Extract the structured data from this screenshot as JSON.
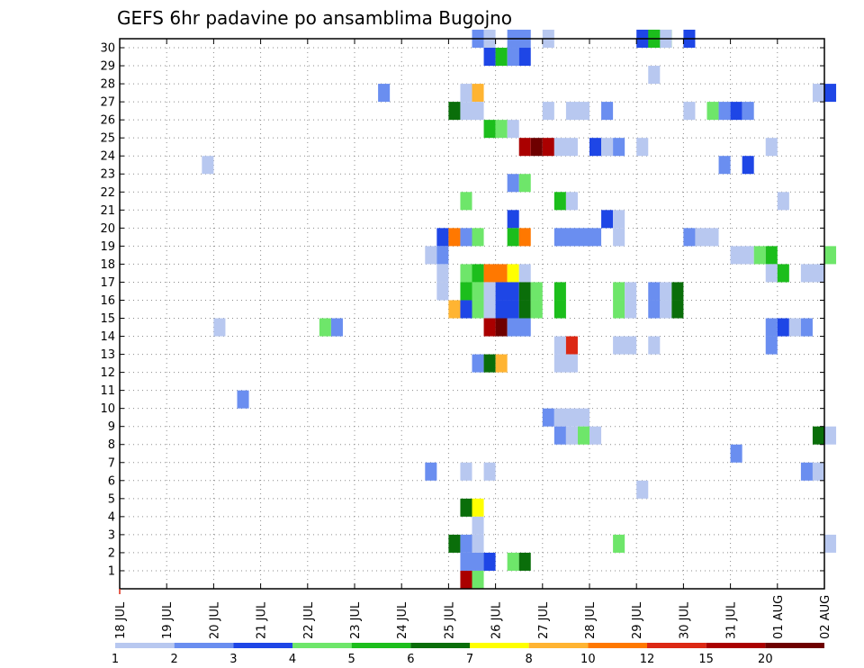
{
  "chart_data": {
    "type": "heatmap",
    "title": "GEFS 6hr padavine po ansamblima Bugojno",
    "y_ticks": [
      "1",
      "2",
      "3",
      "4",
      "5",
      "6",
      "7",
      "8",
      "9",
      "10",
      "11",
      "12",
      "13",
      "14",
      "15",
      "16",
      "17",
      "18",
      "19",
      "20",
      "21",
      "22",
      "23",
      "24",
      "25",
      "26",
      "27",
      "28",
      "29",
      "30"
    ],
    "x_ticks": [
      "18 JUL",
      "19 JUL",
      "20 JUL",
      "21 JUL",
      "22 JUL",
      "23 JUL",
      "24 JUL",
      "25 JUL",
      "26 JUL",
      "27 JUL",
      "28 JUL",
      "29 JUL",
      "30 JUL",
      "31 JUL",
      "01 AUG",
      "02 AUG"
    ],
    "x_range_days": [
      0,
      15
    ],
    "y_range": [
      0,
      30
    ],
    "steps_per_day": 4,
    "grid": true,
    "legend_position": "bottom",
    "colorbar": {
      "colors": [
        "#b8c8f0",
        "#6a8ef0",
        "#1e46e6",
        "#6ee66a",
        "#1cbe1c",
        "#0a6e0a",
        "#ffff00",
        "#ffb432",
        "#ff7800",
        "#dc2814",
        "#aa0000",
        "#6e0000"
      ],
      "labels": [
        "1",
        "2",
        "3",
        "4",
        "5",
        "6",
        "7",
        "8",
        "10",
        "12",
        "15",
        "20"
      ]
    },
    "cells": [
      {
        "m": 30,
        "t": [
          [
            30,
            2,
            1
          ],
          [
            31,
            1,
            1
          ],
          [
            33,
            2,
            2
          ],
          [
            36,
            1,
            1
          ],
          [
            44,
            3,
            2
          ],
          [
            45,
            5,
            2
          ],
          [
            46,
            1,
            1
          ],
          [
            48,
            3,
            1
          ]
        ]
      },
      {
        "m": 29,
        "t": [
          [
            31,
            3,
            1
          ],
          [
            32,
            5,
            1
          ],
          [
            33,
            2,
            1
          ],
          [
            34,
            3,
            1
          ]
        ]
      },
      {
        "m": 28,
        "t": [
          [
            45,
            1,
            1
          ]
        ]
      },
      {
        "m": 27,
        "t": [
          [
            22,
            2,
            1
          ],
          [
            29,
            1,
            1
          ],
          [
            30,
            8,
            1
          ],
          [
            59,
            1,
            1
          ],
          [
            60,
            3,
            1
          ]
        ]
      },
      {
        "m": 26,
        "t": [
          [
            28,
            6,
            1
          ],
          [
            29,
            1,
            2
          ],
          [
            36,
            1,
            1
          ],
          [
            38,
            1,
            2
          ],
          [
            41,
            2,
            1
          ],
          [
            48,
            1,
            1
          ],
          [
            50,
            4,
            1
          ],
          [
            51,
            2,
            1
          ],
          [
            52,
            3,
            1
          ],
          [
            53,
            2,
            1
          ]
        ]
      },
      {
        "m": 25,
        "t": [
          [
            31,
            5,
            1
          ],
          [
            32,
            4,
            1
          ],
          [
            33,
            1,
            1
          ]
        ]
      },
      {
        "m": 24,
        "t": [
          [
            34,
            11,
            1
          ],
          [
            35,
            12,
            1
          ],
          [
            36,
            11,
            1
          ],
          [
            37,
            1,
            2
          ],
          [
            40,
            3,
            1
          ],
          [
            41,
            1,
            1
          ],
          [
            42,
            2,
            1
          ],
          [
            44,
            1,
            1
          ],
          [
            55,
            1,
            1
          ]
        ]
      },
      {
        "m": 23,
        "t": [
          [
            7,
            1,
            1
          ],
          [
            51,
            2,
            1
          ],
          [
            53,
            3,
            1
          ]
        ]
      },
      {
        "m": 22,
        "t": [
          [
            33,
            2,
            1
          ],
          [
            34,
            4,
            1
          ]
        ]
      },
      {
        "m": 21,
        "t": [
          [
            29,
            4,
            1
          ],
          [
            37,
            5,
            1
          ],
          [
            38,
            1,
            1
          ],
          [
            56,
            1,
            1
          ]
        ]
      },
      {
        "m": 20,
        "t": [
          [
            33,
            3,
            1
          ],
          [
            41,
            3,
            1
          ],
          [
            42,
            1,
            1
          ]
        ]
      },
      {
        "m": 19,
        "t": [
          [
            27,
            3,
            1
          ],
          [
            28,
            9,
            1
          ],
          [
            29,
            2,
            1
          ],
          [
            30,
            4,
            1
          ],
          [
            33,
            5,
            1
          ],
          [
            34,
            9,
            1
          ],
          [
            37,
            2,
            4
          ],
          [
            42,
            1,
            1
          ],
          [
            48,
            2,
            1
          ],
          [
            49,
            1,
            2
          ]
        ]
      },
      {
        "m": 18,
        "t": [
          [
            26,
            1,
            1
          ],
          [
            27,
            2,
            1
          ],
          [
            52,
            1,
            2
          ],
          [
            54,
            4,
            1
          ],
          [
            55,
            5,
            1
          ],
          [
            60,
            4,
            1
          ]
        ]
      },
      {
        "m": 17,
        "t": [
          [
            27,
            1,
            1
          ],
          [
            29,
            4,
            1
          ],
          [
            30,
            5,
            1
          ],
          [
            31,
            9,
            2
          ],
          [
            33,
            7,
            1
          ],
          [
            34,
            1,
            1
          ],
          [
            55,
            1,
            1
          ],
          [
            56,
            5,
            1
          ],
          [
            58,
            1,
            2
          ]
        ]
      },
      {
        "m": 16,
        "t": [
          [
            27,
            1,
            1
          ],
          [
            29,
            5,
            1
          ],
          [
            30,
            4,
            1
          ],
          [
            31,
            1,
            1
          ],
          [
            32,
            3,
            2
          ],
          [
            34,
            6,
            1
          ],
          [
            35,
            4,
            1
          ],
          [
            37,
            5,
            1
          ],
          [
            42,
            4,
            1
          ],
          [
            43,
            1,
            1
          ],
          [
            45,
            2,
            1
          ],
          [
            46,
            1,
            1
          ],
          [
            47,
            6,
            1
          ]
        ]
      },
      {
        "m": 15,
        "t": [
          [
            28,
            8,
            1
          ],
          [
            29,
            3,
            1
          ],
          [
            30,
            4,
            1
          ],
          [
            31,
            1,
            1
          ],
          [
            32,
            3,
            2
          ],
          [
            34,
            6,
            1
          ],
          [
            35,
            4,
            1
          ],
          [
            37,
            5,
            1
          ],
          [
            42,
            4,
            1
          ],
          [
            43,
            1,
            1
          ],
          [
            45,
            2,
            1
          ],
          [
            46,
            1,
            1
          ],
          [
            47,
            6,
            1
          ]
        ]
      },
      {
        "m": 14,
        "t": [
          [
            8,
            1,
            1
          ],
          [
            17,
            4,
            1
          ],
          [
            18,
            2,
            1
          ],
          [
            31,
            11,
            1
          ],
          [
            32,
            12,
            1
          ],
          [
            33,
            2,
            2
          ],
          [
            55,
            2,
            1
          ],
          [
            56,
            3,
            1
          ],
          [
            57,
            1,
            1
          ],
          [
            58,
            2,
            1
          ]
        ]
      },
      {
        "m": 13,
        "t": [
          [
            37,
            1,
            1
          ],
          [
            38,
            10,
            1
          ],
          [
            42,
            1,
            2
          ],
          [
            45,
            1,
            1
          ],
          [
            55,
            2,
            1
          ]
        ]
      },
      {
        "m": 12,
        "t": [
          [
            30,
            2,
            1
          ],
          [
            31,
            6,
            1
          ],
          [
            32,
            8,
            1
          ],
          [
            37,
            1,
            2
          ]
        ]
      },
      {
        "m": 10,
        "t": [
          [
            10,
            2,
            1
          ]
        ]
      },
      {
        "m": 9,
        "t": [
          [
            36,
            2,
            1
          ],
          [
            37,
            1,
            3
          ]
        ]
      },
      {
        "m": 8,
        "t": [
          [
            37,
            2,
            1
          ],
          [
            38,
            1,
            1
          ],
          [
            39,
            4,
            1
          ],
          [
            40,
            1,
            1
          ],
          [
            59,
            6,
            1
          ],
          [
            60,
            1,
            1
          ]
        ]
      },
      {
        "m": 7,
        "t": [
          [
            52,
            2,
            1
          ]
        ]
      },
      {
        "m": 6,
        "t": [
          [
            26,
            2,
            1
          ],
          [
            29,
            1,
            1
          ],
          [
            31,
            1,
            1
          ],
          [
            58,
            2,
            1
          ],
          [
            59,
            1,
            1
          ]
        ]
      },
      {
        "m": 5,
        "t": [
          [
            44,
            1,
            1
          ]
        ]
      },
      {
        "m": 4,
        "t": [
          [
            29,
            6,
            1
          ],
          [
            30,
            7,
            1
          ]
        ]
      },
      {
        "m": 3,
        "t": [
          [
            30,
            1,
            1
          ]
        ]
      },
      {
        "m": 2,
        "t": [
          [
            28,
            6,
            1
          ],
          [
            29,
            2,
            1
          ],
          [
            30,
            1,
            1
          ],
          [
            42,
            4,
            1
          ],
          [
            60,
            1,
            1
          ]
        ]
      },
      {
        "m": 1,
        "t": [
          [
            29,
            2,
            2
          ],
          [
            31,
            3,
            1
          ],
          [
            33,
            4,
            1
          ],
          [
            34,
            6,
            1
          ]
        ]
      },
      {
        "m": 0,
        "t": [
          [
            29,
            11,
            1
          ],
          [
            30,
            4,
            1
          ]
        ]
      }
    ]
  }
}
